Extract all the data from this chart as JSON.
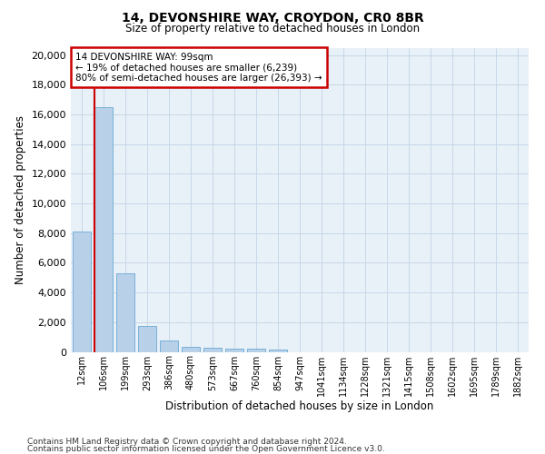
{
  "title": "14, DEVONSHIRE WAY, CROYDON, CR0 8BR",
  "subtitle": "Size of property relative to detached houses in London",
  "xlabel": "Distribution of detached houses by size in London",
  "ylabel": "Number of detached properties",
  "categories": [
    "12sqm",
    "106sqm",
    "199sqm",
    "293sqm",
    "386sqm",
    "480sqm",
    "573sqm",
    "667sqm",
    "760sqm",
    "854sqm",
    "947sqm",
    "1041sqm",
    "1134sqm",
    "1228sqm",
    "1321sqm",
    "1415sqm",
    "1508sqm",
    "1602sqm",
    "1695sqm",
    "1789sqm",
    "1882sqm"
  ],
  "values": [
    8100,
    16500,
    5300,
    1750,
    750,
    350,
    270,
    220,
    200,
    150,
    0,
    0,
    0,
    0,
    0,
    0,
    0,
    0,
    0,
    0,
    0
  ],
  "bar_color": "#b8d0e8",
  "bar_edge_color": "#6aaad4",
  "annotation_text_line1": "14 DEVONSHIRE WAY: 99sqm",
  "annotation_text_line2": "← 19% of detached houses are smaller (6,239)",
  "annotation_text_line3": "80% of semi-detached houses are larger (26,393) →",
  "annotation_box_color": "#ffffff",
  "annotation_box_edge": "#cc0000",
  "vline_color": "#cc0000",
  "grid_color": "#c8d8e8",
  "ylim": [
    0,
    20500
  ],
  "yticks": [
    0,
    2000,
    4000,
    6000,
    8000,
    10000,
    12000,
    14000,
    16000,
    18000,
    20000
  ],
  "footer_line1": "Contains HM Land Registry data © Crown copyright and database right 2024.",
  "footer_line2": "Contains public sector information licensed under the Open Government Licence v3.0.",
  "background_color": "#ffffff",
  "plot_bg_color": "#e8f0f8"
}
